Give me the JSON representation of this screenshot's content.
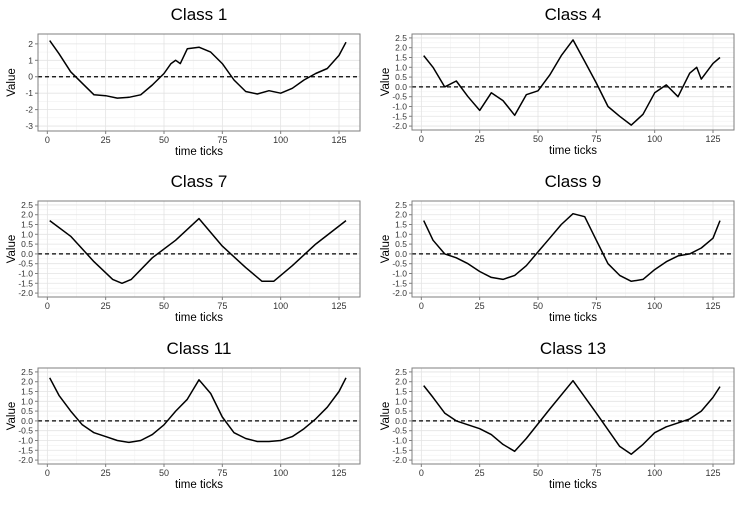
{
  "chart_data": [
    {
      "type": "line",
      "title": "Class 1",
      "xlabel": "time ticks",
      "ylabel": "Value",
      "xlim": [
        -4,
        134
      ],
      "ylim": [
        -3.3,
        2.6
      ],
      "x_ticks": [
        0,
        25,
        50,
        75,
        100,
        125
      ],
      "y_ticks": [
        -3,
        -2,
        -1,
        0,
        1,
        2
      ],
      "y_tick_labels": [
        "-3",
        "-2",
        "-1",
        "0",
        "1",
        "2"
      ],
      "grid": true,
      "reference_line": 0,
      "series": [
        {
          "x": [
            1,
            5,
            10,
            15,
            20,
            25,
            30,
            35,
            40,
            45,
            50,
            53,
            55,
            57,
            60,
            65,
            70,
            75,
            80,
            85,
            90,
            95,
            100,
            105,
            110,
            115,
            120,
            125,
            128
          ],
          "y": [
            2.2,
            1.4,
            0.3,
            -0.4,
            -1.1,
            -1.15,
            -1.3,
            -1.25,
            -1.1,
            -0.5,
            0.2,
            0.8,
            1.0,
            0.8,
            1.7,
            1.8,
            1.5,
            0.8,
            -0.2,
            -0.9,
            -1.05,
            -0.85,
            -1.0,
            -0.7,
            -0.2,
            0.2,
            0.5,
            1.3,
            2.1
          ]
        }
      ]
    },
    {
      "type": "line",
      "title": "Class 4",
      "xlabel": "time ticks",
      "ylabel": "Value",
      "xlim": [
        -4,
        134
      ],
      "ylim": [
        -2.2,
        2.7
      ],
      "x_ticks": [
        0,
        25,
        50,
        75,
        100,
        125
      ],
      "y_ticks": [
        -2.0,
        -1.5,
        -1.0,
        -0.5,
        0.0,
        0.5,
        1.0,
        1.5,
        2.0,
        2.5
      ],
      "y_tick_labels": [
        "-2.0",
        "-1.5",
        "-1.0",
        "-0.5",
        "0.0",
        "0.5",
        "1.0",
        "1.5",
        "2.0",
        "2.5"
      ],
      "grid": true,
      "reference_line": 0,
      "series": [
        {
          "x": [
            1,
            5,
            10,
            15,
            20,
            25,
            30,
            35,
            40,
            45,
            50,
            55,
            60,
            65,
            70,
            75,
            80,
            85,
            90,
            95,
            100,
            105,
            110,
            115,
            118,
            120,
            125,
            128
          ],
          "y": [
            1.6,
            1.0,
            0.0,
            0.3,
            -0.5,
            -1.2,
            -0.3,
            -0.7,
            -1.45,
            -0.4,
            -0.2,
            0.6,
            1.6,
            2.4,
            1.3,
            0.2,
            -1.0,
            -1.5,
            -1.95,
            -1.4,
            -0.3,
            0.1,
            -0.5,
            0.7,
            1.0,
            0.4,
            1.2,
            1.5
          ]
        }
      ]
    },
    {
      "type": "line",
      "title": "Class 7",
      "xlabel": "time ticks",
      "ylabel": "Value",
      "xlim": [
        -4,
        134
      ],
      "ylim": [
        -2.2,
        2.7
      ],
      "x_ticks": [
        0,
        25,
        50,
        75,
        100,
        125
      ],
      "y_ticks": [
        -2.0,
        -1.5,
        -1.0,
        -0.5,
        0.0,
        0.5,
        1.0,
        1.5,
        2.0,
        2.5
      ],
      "y_tick_labels": [
        "-2.0",
        "-1.5",
        "-1.0",
        "-0.5",
        "0.0",
        "0.5",
        "1.0",
        "1.5",
        "2.0",
        "2.5"
      ],
      "grid": true,
      "reference_line": 0,
      "series": [
        {
          "x": [
            1,
            10,
            20,
            28,
            32,
            36,
            45,
            55,
            65,
            75,
            85,
            92,
            97,
            105,
            115,
            128
          ],
          "y": [
            1.7,
            0.9,
            -0.4,
            -1.3,
            -1.5,
            -1.3,
            -0.2,
            0.7,
            1.8,
            0.4,
            -0.7,
            -1.4,
            -1.4,
            -0.6,
            0.5,
            1.7
          ]
        }
      ]
    },
    {
      "type": "line",
      "title": "Class 9",
      "xlabel": "time ticks",
      "ylabel": "Value",
      "xlim": [
        -4,
        134
      ],
      "ylim": [
        -2.2,
        2.7
      ],
      "x_ticks": [
        0,
        25,
        50,
        75,
        100,
        125
      ],
      "y_ticks": [
        -2.0,
        -1.5,
        -1.0,
        -0.5,
        0.0,
        0.5,
        1.0,
        1.5,
        2.0,
        2.5
      ],
      "y_tick_labels": [
        "-2.0",
        "-1.5",
        "-1.0",
        "-0.5",
        "0.0",
        "0.5",
        "1.0",
        "1.5",
        "2.0",
        "2.5"
      ],
      "grid": true,
      "reference_line": 0,
      "series": [
        {
          "x": [
            1,
            5,
            10,
            15,
            20,
            25,
            30,
            35,
            40,
            45,
            50,
            55,
            60,
            65,
            70,
            75,
            80,
            85,
            90,
            95,
            100,
            105,
            110,
            115,
            120,
            125,
            128
          ],
          "y": [
            1.7,
            0.7,
            0.0,
            -0.2,
            -0.5,
            -0.9,
            -1.2,
            -1.3,
            -1.1,
            -0.6,
            0.1,
            0.8,
            1.5,
            2.05,
            1.9,
            0.7,
            -0.5,
            -1.1,
            -1.4,
            -1.3,
            -0.8,
            -0.4,
            -0.1,
            0.0,
            0.3,
            0.8,
            1.7
          ]
        }
      ]
    },
    {
      "type": "line",
      "title": "Class 11",
      "xlabel": "time ticks",
      "ylabel": "Value",
      "xlim": [
        -4,
        134
      ],
      "ylim": [
        -2.2,
        2.7
      ],
      "x_ticks": [
        0,
        25,
        50,
        75,
        100,
        125
      ],
      "y_ticks": [
        -2.0,
        -1.5,
        -1.0,
        -0.5,
        0.0,
        0.5,
        1.0,
        1.5,
        2.0,
        2.5
      ],
      "y_tick_labels": [
        "-2.0",
        "-1.5",
        "-1.0",
        "-0.5",
        "0.0",
        "0.5",
        "1.0",
        "1.5",
        "2.0",
        "2.5"
      ],
      "grid": true,
      "reference_line": 0,
      "series": [
        {
          "x": [
            1,
            5,
            10,
            15,
            20,
            25,
            30,
            35,
            40,
            45,
            50,
            55,
            60,
            65,
            70,
            75,
            80,
            85,
            90,
            95,
            100,
            105,
            110,
            115,
            120,
            125,
            128
          ],
          "y": [
            2.2,
            1.3,
            0.5,
            -0.2,
            -0.6,
            -0.8,
            -1.0,
            -1.1,
            -1.0,
            -0.7,
            -0.2,
            0.5,
            1.1,
            2.1,
            1.4,
            0.2,
            -0.6,
            -0.9,
            -1.05,
            -1.05,
            -1.0,
            -0.8,
            -0.4,
            0.1,
            0.7,
            1.5,
            2.2
          ]
        }
      ]
    },
    {
      "type": "line",
      "title": "Class 13",
      "xlabel": "time ticks",
      "ylabel": "Value",
      "xlim": [
        -4,
        134
      ],
      "ylim": [
        -2.2,
        2.7
      ],
      "x_ticks": [
        0,
        25,
        50,
        75,
        100,
        125
      ],
      "y_ticks": [
        -2.0,
        -1.5,
        -1.0,
        -0.5,
        0.0,
        0.5,
        1.0,
        1.5,
        2.0,
        2.5
      ],
      "y_tick_labels": [
        "-2.0",
        "-1.5",
        "-1.0",
        "-0.5",
        "0.0",
        "0.5",
        "1.0",
        "1.5",
        "2.0",
        "2.5"
      ],
      "grid": true,
      "reference_line": 0,
      "series": [
        {
          "x": [
            1,
            5,
            10,
            15,
            20,
            25,
            30,
            35,
            40,
            45,
            55,
            65,
            75,
            85,
            90,
            95,
            100,
            105,
            110,
            115,
            120,
            125,
            128
          ],
          "y": [
            1.8,
            1.2,
            0.4,
            0.0,
            -0.2,
            -0.4,
            -0.7,
            -1.2,
            -1.55,
            -0.9,
            0.6,
            2.05,
            0.4,
            -1.3,
            -1.7,
            -1.2,
            -0.6,
            -0.3,
            -0.1,
            0.1,
            0.5,
            1.2,
            1.75
          ]
        }
      ]
    }
  ]
}
